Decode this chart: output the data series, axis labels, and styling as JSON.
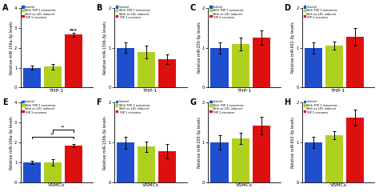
{
  "panels": [
    {
      "label": "A",
      "ylabel": "Relative miR-106a-3p levels",
      "xlabel": "THP-1",
      "ylim": [
        0,
        4
      ],
      "yticks": [
        0,
        1,
        2,
        3,
        4
      ],
      "values": [
        1.0,
        1.05,
        2.65
      ],
      "errors": [
        0.09,
        0.13,
        0.1
      ],
      "sig": "***",
      "bracket": false
    },
    {
      "label": "B",
      "ylabel": "Relative miR-130b-3p levels",
      "xlabel": "THP-1",
      "ylim": [
        0,
        2
      ],
      "yticks": [
        0,
        1,
        2
      ],
      "values": [
        1.0,
        0.9,
        0.72
      ],
      "errors": [
        0.13,
        0.16,
        0.12
      ],
      "sig": null,
      "bracket": false
    },
    {
      "label": "C",
      "ylabel": "Relative miR-205-5p levels",
      "xlabel": "THP-1",
      "ylim": [
        0,
        2
      ],
      "yticks": [
        0,
        1,
        2
      ],
      "values": [
        1.0,
        1.1,
        1.25
      ],
      "errors": [
        0.14,
        0.16,
        0.18
      ],
      "sig": null,
      "bracket": false
    },
    {
      "label": "D",
      "ylabel": "Relative miR-652-3p levels",
      "xlabel": "THP-1",
      "ylim": [
        0,
        2
      ],
      "yticks": [
        0,
        1,
        2
      ],
      "values": [
        1.0,
        1.05,
        1.28
      ],
      "errors": [
        0.14,
        0.1,
        0.22
      ],
      "sig": null,
      "bracket": false
    },
    {
      "label": "E",
      "ylabel": "Relative miR-106a-3p levels",
      "xlabel": "VSMCs",
      "ylim": [
        0,
        4
      ],
      "yticks": [
        0,
        1,
        2,
        3,
        4
      ],
      "values": [
        1.0,
        1.0,
        1.85
      ],
      "errors": [
        0.09,
        0.15,
        0.09
      ],
      "sig": "**",
      "bracket": true
    },
    {
      "label": "F",
      "ylabel": "Relative miR-130b-3p levels",
      "xlabel": "VSMCs",
      "ylim": [
        0,
        2
      ],
      "yticks": [
        0,
        1,
        2
      ],
      "values": [
        1.0,
        0.9,
        0.78
      ],
      "errors": [
        0.15,
        0.13,
        0.18
      ],
      "sig": null,
      "bracket": false
    },
    {
      "label": "G",
      "ylabel": "Relative miR-205-5p levels",
      "xlabel": "VSMCs",
      "ylim": [
        0,
        2
      ],
      "yticks": [
        0,
        1,
        2
      ],
      "values": [
        1.0,
        1.1,
        1.42
      ],
      "errors": [
        0.18,
        0.14,
        0.22
      ],
      "sig": null,
      "bracket": false
    },
    {
      "label": "H",
      "ylabel": "Relative miR-652-3p levels",
      "xlabel": "VSMCs",
      "ylim": [
        0,
        2
      ],
      "yticks": [
        0,
        1,
        2
      ],
      "values": [
        1.0,
        1.18,
        1.62
      ],
      "errors": [
        0.14,
        0.1,
        0.2
      ],
      "sig": null,
      "bracket": false
    }
  ],
  "bar_colors": [
    "#1f4fcc",
    "#b0d020",
    "#dd1010"
  ],
  "legend_labels": [
    "Control",
    "With THP-1 exosomes",
    "With ox-LDL induced\nTHP-1 exsomes"
  ],
  "bar_width": 0.22,
  "x_positions": [
    0.12,
    0.38,
    0.64
  ]
}
